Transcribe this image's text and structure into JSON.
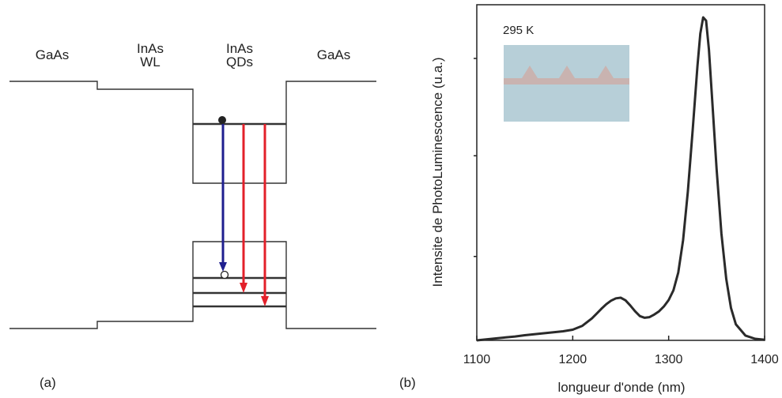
{
  "panel_a": {
    "label": "(a)",
    "regions": [
      {
        "line1": "GaAs",
        "line2": ""
      },
      {
        "line1": "InAs",
        "line2": "WL"
      },
      {
        "line1": "InAs",
        "line2": "QDs"
      },
      {
        "line1": "GaAs",
        "line2": ""
      }
    ],
    "colors": {
      "band": "#333333",
      "blue_arrow": "#1f1f8f",
      "red_arrow": "#e3202a"
    }
  },
  "panel_b": {
    "label": "(b)",
    "inset_text": "295 K",
    "inset_colors": {
      "background": "#b7cfd8",
      "wetting_layer": "#c9b3b0"
    }
  },
  "chart_data": {
    "type": "line",
    "title": "",
    "xlabel": "longueur d'onde (nm)",
    "ylabel": "Intensite de PhotoLuminescence (u.a.)",
    "xlim": [
      1100,
      1400
    ],
    "ylim": [
      0,
      1.0
    ],
    "xticks": [
      1100,
      1200,
      1300,
      1400
    ],
    "y_tick_labels_shown": false,
    "grid": false,
    "series": [
      {
        "color": "#2a2a2a",
        "x": [
          1100,
          1110,
          1120,
          1130,
          1140,
          1150,
          1160,
          1170,
          1180,
          1190,
          1200,
          1210,
          1220,
          1225,
          1230,
          1235,
          1240,
          1245,
          1250,
          1255,
          1260,
          1265,
          1270,
          1275,
          1280,
          1285,
          1290,
          1295,
          1300,
          1305,
          1310,
          1315,
          1320,
          1325,
          1330,
          1333,
          1336,
          1339,
          1342,
          1345,
          1350,
          1355,
          1360,
          1365,
          1370,
          1380,
          1390,
          1400
        ],
        "y": [
          0.0,
          0.003,
          0.006,
          0.009,
          0.012,
          0.016,
          0.019,
          0.022,
          0.025,
          0.028,
          0.033,
          0.045,
          0.068,
          0.083,
          0.098,
          0.112,
          0.123,
          0.13,
          0.132,
          0.124,
          0.108,
          0.09,
          0.075,
          0.07,
          0.072,
          0.08,
          0.09,
          0.105,
          0.125,
          0.155,
          0.21,
          0.31,
          0.46,
          0.65,
          0.85,
          0.95,
          1.0,
          0.99,
          0.9,
          0.76,
          0.53,
          0.33,
          0.19,
          0.1,
          0.05,
          0.015,
          0.005,
          0.002
        ]
      }
    ]
  }
}
